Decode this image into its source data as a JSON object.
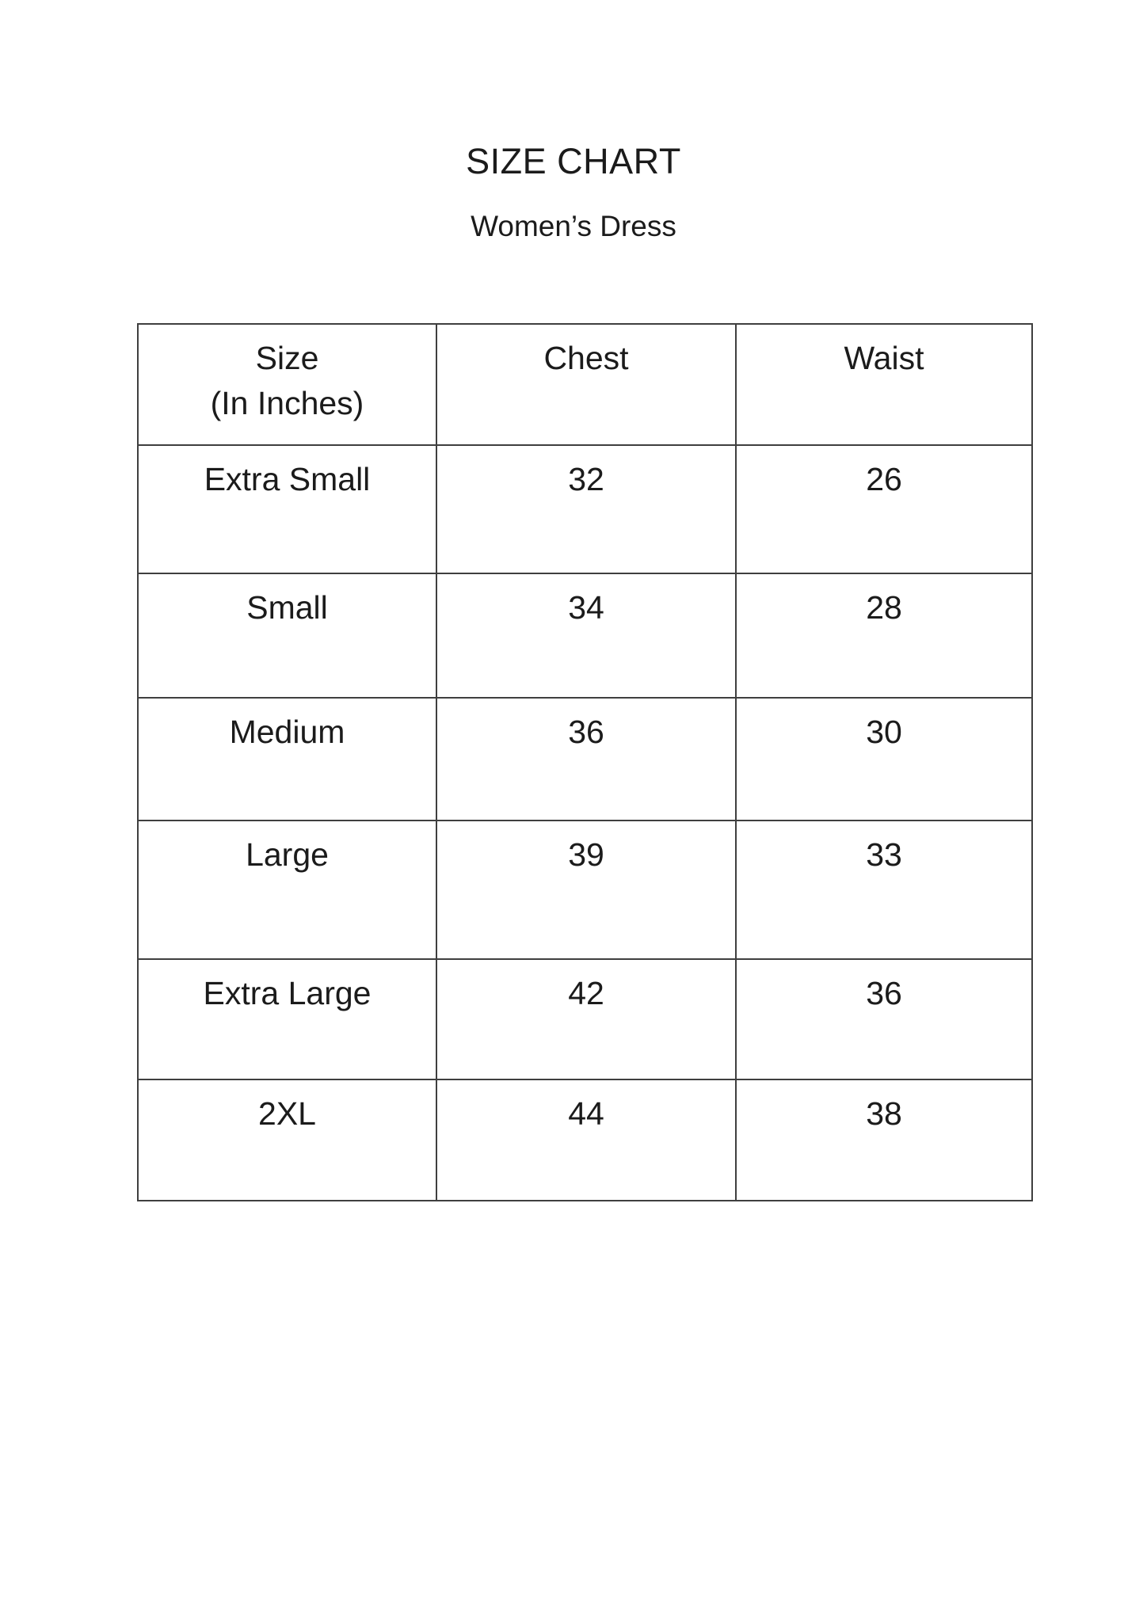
{
  "page": {
    "title": "SIZE CHART",
    "subtitle": "Women’s Dress",
    "background_color": "#ffffff",
    "text_color": "#1b1b1b",
    "table_border_color": "#3f3f3f"
  },
  "table": {
    "headers": {
      "size": {
        "line1": "Size",
        "line2": "(In Inches)"
      },
      "chest": "Chest",
      "waist": "Waist"
    },
    "rows": [
      {
        "size": "Extra Small",
        "chest": "32",
        "waist": "26"
      },
      {
        "size": "Small",
        "chest": "34",
        "waist": "28"
      },
      {
        "size": "Medium",
        "chest": "36",
        "waist": "30"
      },
      {
        "size": "Large",
        "chest": "39",
        "waist": "33"
      },
      {
        "size": "Extra Large",
        "chest": "42",
        "waist": "36"
      },
      {
        "size": "2XL",
        "chest": "44",
        "waist": "38"
      }
    ]
  }
}
